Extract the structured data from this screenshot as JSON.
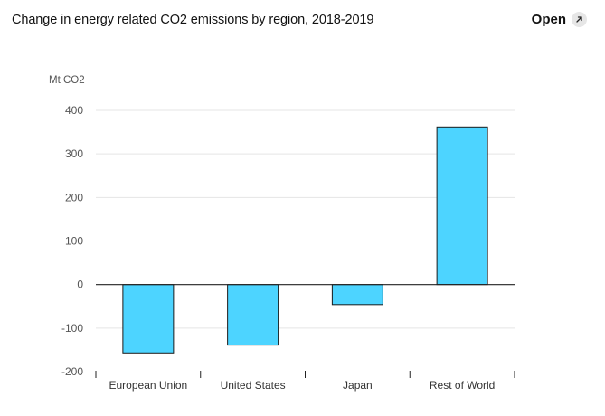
{
  "header": {
    "title": "Change in energy related CO2 emissions by region, 2018-2019",
    "open_label": "Open",
    "open_icon": "external-link-icon"
  },
  "colors": {
    "bar_fill": "#4dd4ff",
    "bar_stroke": "#1a1a1a",
    "grid": "#e5e5e5",
    "axis": "#222222"
  },
  "chart_data": {
    "type": "bar",
    "title": "Change in energy related CO2 emissions by region, 2018-2019",
    "ylabel": "Mt CO2",
    "xlabel": "",
    "categories": [
      "European Union",
      "United States",
      "Japan",
      "Rest of World"
    ],
    "values": [
      -157,
      -139,
      -46,
      362
    ],
    "ylim": [
      -200,
      400
    ],
    "yticks": [
      400,
      300,
      200,
      100,
      0,
      -100,
      -200
    ],
    "grid": true,
    "legend": "none"
  }
}
